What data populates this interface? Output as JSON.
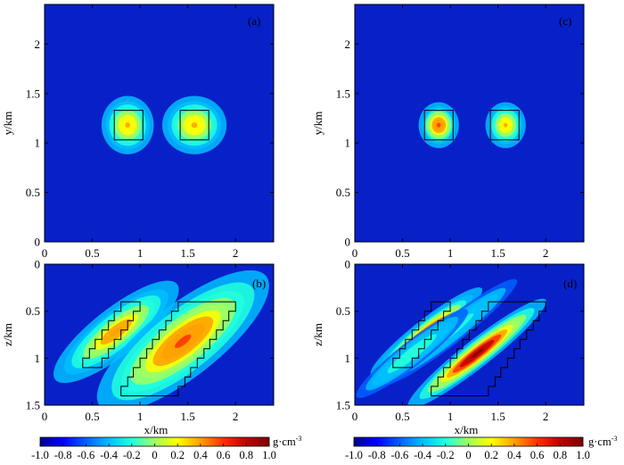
{
  "figure": {
    "colormap": [
      "#00008f",
      "#0000ff",
      "#0060ff",
      "#00bfff",
      "#22ffdd",
      "#a0ff60",
      "#ffff00",
      "#ff9f00",
      "#ff3000",
      "#bf0000",
      "#7f0000"
    ],
    "background_color": "#0820c8",
    "outline_color": "#000000"
  },
  "chart_data": [
    {
      "id": "a",
      "type": "heatmap",
      "panel_label": "(a)",
      "xlabel": "",
      "ylabel": "y/km",
      "xlim": [
        0,
        2.4
      ],
      "ylim": [
        0,
        2.4
      ],
      "xticks": [
        "0",
        "0.5",
        "1",
        "1.5",
        "2"
      ],
      "yticks": [
        "0",
        "0.5",
        "1",
        "1.5",
        "2"
      ],
      "outlines": [
        {
          "name": "block-1",
          "points": [
            [
              0.73,
              1.33
            ],
            [
              1.03,
              1.33
            ],
            [
              1.03,
              1.03
            ],
            [
              0.73,
              1.03
            ]
          ]
        },
        {
          "name": "block-2",
          "points": [
            [
              1.42,
              1.33
            ],
            [
              1.72,
              1.33
            ],
            [
              1.72,
              1.03
            ],
            [
              1.42,
              1.03
            ]
          ]
        }
      ],
      "anomalies": [
        {
          "cx": 0.87,
          "cy": 1.18,
          "sx": 0.13,
          "sy": 0.14,
          "value": 0.34
        },
        {
          "cx": 1.57,
          "cy": 1.18,
          "sx": 0.16,
          "sy": 0.14,
          "value": 0.38
        }
      ]
    },
    {
      "id": "b",
      "type": "heatmap",
      "panel_label": "(b)",
      "xlabel": "x/km",
      "ylabel": "z/km",
      "xlim": [
        0,
        2.4
      ],
      "ylim": [
        0,
        1.5
      ],
      "y_reversed": true,
      "xticks": [
        "0",
        "0.5",
        "1",
        "1.5",
        "2"
      ],
      "yticks": [
        "0",
        "0.5",
        "1",
        "1.5"
      ],
      "outlines": [
        {
          "name": "dipping-body-1",
          "points": [
            [
              0.4,
              1.1
            ],
            [
              0.4,
              1.0
            ],
            [
              0.47,
              1.0
            ],
            [
              0.47,
              0.9
            ],
            [
              0.53,
              0.9
            ],
            [
              0.53,
              0.8
            ],
            [
              0.6,
              0.8
            ],
            [
              0.6,
              0.7
            ],
            [
              0.67,
              0.7
            ],
            [
              0.67,
              0.6
            ],
            [
              0.73,
              0.6
            ],
            [
              0.73,
              0.5
            ],
            [
              0.8,
              0.5
            ],
            [
              0.8,
              0.4
            ],
            [
              1.0,
              0.4
            ],
            [
              1.0,
              0.5
            ],
            [
              0.93,
              0.5
            ],
            [
              0.93,
              0.6
            ],
            [
              0.87,
              0.6
            ],
            [
              0.87,
              0.7
            ],
            [
              0.8,
              0.7
            ],
            [
              0.8,
              0.8
            ],
            [
              0.73,
              0.8
            ],
            [
              0.73,
              0.9
            ],
            [
              0.67,
              0.9
            ],
            [
              0.67,
              1.0
            ],
            [
              0.6,
              1.0
            ],
            [
              0.6,
              1.1
            ]
          ]
        },
        {
          "name": "dipping-body-2",
          "points": [
            [
              0.8,
              1.4
            ],
            [
              0.8,
              1.3
            ],
            [
              0.87,
              1.3
            ],
            [
              0.87,
              1.2
            ],
            [
              0.93,
              1.2
            ],
            [
              0.93,
              1.1
            ],
            [
              1.0,
              1.1
            ],
            [
              1.0,
              1.0
            ],
            [
              1.07,
              1.0
            ],
            [
              1.07,
              0.9
            ],
            [
              1.13,
              0.9
            ],
            [
              1.13,
              0.8
            ],
            [
              1.2,
              0.8
            ],
            [
              1.2,
              0.7
            ],
            [
              1.27,
              0.7
            ],
            [
              1.27,
              0.6
            ],
            [
              1.33,
              0.6
            ],
            [
              1.33,
              0.5
            ],
            [
              1.4,
              0.5
            ],
            [
              1.4,
              0.4
            ],
            [
              2.0,
              0.4
            ],
            [
              2.0,
              0.5
            ],
            [
              1.93,
              0.5
            ],
            [
              1.93,
              0.6
            ],
            [
              1.87,
              0.6
            ],
            [
              1.87,
              0.7
            ],
            [
              1.8,
              0.7
            ],
            [
              1.8,
              0.8
            ],
            [
              1.73,
              0.8
            ],
            [
              1.73,
              0.9
            ],
            [
              1.67,
              0.9
            ],
            [
              1.67,
              1.0
            ],
            [
              1.6,
              1.0
            ],
            [
              1.6,
              1.1
            ],
            [
              1.53,
              1.1
            ],
            [
              1.53,
              1.2
            ],
            [
              1.47,
              1.2
            ],
            [
              1.47,
              1.3
            ],
            [
              1.4,
              1.3
            ],
            [
              1.4,
              1.4
            ]
          ]
        }
      ],
      "anomalies": [
        {
          "cx": 0.75,
          "cy": 0.72,
          "su": 0.55,
          "sv": 0.17,
          "angle": 38,
          "value": 0.42
        },
        {
          "cx": 1.45,
          "cy": 0.82,
          "su": 0.75,
          "sv": 0.26,
          "angle": 38,
          "value": 0.6
        }
      ]
    },
    {
      "id": "c",
      "type": "heatmap",
      "panel_label": "(c)",
      "xlabel": "",
      "ylabel": "y/km",
      "xlim": [
        0,
        2.4
      ],
      "ylim": [
        0,
        2.4
      ],
      "xticks": [
        "0",
        "0.5",
        "1",
        "1.5",
        "2"
      ],
      "yticks": [
        "0",
        "0.5",
        "1",
        "1.5",
        "2"
      ],
      "outlines": [
        {
          "name": "block-1",
          "points": [
            [
              0.73,
              1.33
            ],
            [
              1.03,
              1.33
            ],
            [
              1.03,
              1.03
            ],
            [
              0.73,
              1.03
            ]
          ]
        },
        {
          "name": "block-2",
          "points": [
            [
              1.42,
              1.33
            ],
            [
              1.72,
              1.33
            ],
            [
              1.72,
              1.03
            ],
            [
              1.42,
              1.03
            ]
          ]
        }
      ],
      "anomalies": [
        {
          "cx": 0.88,
          "cy": 1.18,
          "sx": 0.1,
          "sy": 0.11,
          "value": 0.55
        },
        {
          "cx": 1.58,
          "cy": 1.18,
          "sx": 0.1,
          "sy": 0.11,
          "value": 0.4
        }
      ]
    },
    {
      "id": "d",
      "type": "heatmap",
      "panel_label": "(d)",
      "xlabel": "x/km",
      "ylabel": "z/km",
      "xlim": [
        0,
        2.4
      ],
      "ylim": [
        0,
        1.5
      ],
      "y_reversed": true,
      "xticks": [
        "0",
        "0.5",
        "1",
        "1.5",
        "2"
      ],
      "yticks": [
        "0",
        "0.5",
        "1",
        "1.5"
      ],
      "outlines": [
        {
          "name": "dipping-body-1",
          "points": [
            [
              0.4,
              1.1
            ],
            [
              0.4,
              1.0
            ],
            [
              0.47,
              1.0
            ],
            [
              0.47,
              0.9
            ],
            [
              0.53,
              0.9
            ],
            [
              0.53,
              0.8
            ],
            [
              0.6,
              0.8
            ],
            [
              0.6,
              0.7
            ],
            [
              0.67,
              0.7
            ],
            [
              0.67,
              0.6
            ],
            [
              0.73,
              0.6
            ],
            [
              0.73,
              0.5
            ],
            [
              0.8,
              0.5
            ],
            [
              0.8,
              0.4
            ],
            [
              1.0,
              0.4
            ],
            [
              1.0,
              0.5
            ],
            [
              0.93,
              0.5
            ],
            [
              0.93,
              0.6
            ],
            [
              0.87,
              0.6
            ],
            [
              0.87,
              0.7
            ],
            [
              0.8,
              0.7
            ],
            [
              0.8,
              0.8
            ],
            [
              0.73,
              0.8
            ],
            [
              0.73,
              0.9
            ],
            [
              0.67,
              0.9
            ],
            [
              0.67,
              1.0
            ],
            [
              0.6,
              1.0
            ],
            [
              0.6,
              1.1
            ]
          ]
        },
        {
          "name": "dipping-body-2",
          "points": [
            [
              0.8,
              1.4
            ],
            [
              0.8,
              1.3
            ],
            [
              0.87,
              1.3
            ],
            [
              0.87,
              1.2
            ],
            [
              0.93,
              1.2
            ],
            [
              0.93,
              1.1
            ],
            [
              1.0,
              1.1
            ],
            [
              1.0,
              1.0
            ],
            [
              1.07,
              1.0
            ],
            [
              1.07,
              0.9
            ],
            [
              1.13,
              0.9
            ],
            [
              1.13,
              0.8
            ],
            [
              1.2,
              0.8
            ],
            [
              1.2,
              0.7
            ],
            [
              1.27,
              0.7
            ],
            [
              1.27,
              0.6
            ],
            [
              1.33,
              0.6
            ],
            [
              1.33,
              0.5
            ],
            [
              1.4,
              0.5
            ],
            [
              1.4,
              0.4
            ],
            [
              2.0,
              0.4
            ],
            [
              2.0,
              0.5
            ],
            [
              1.93,
              0.5
            ],
            [
              1.93,
              0.6
            ],
            [
              1.87,
              0.6
            ],
            [
              1.87,
              0.7
            ],
            [
              1.8,
              0.7
            ],
            [
              1.8,
              0.8
            ],
            [
              1.73,
              0.8
            ],
            [
              1.73,
              0.9
            ],
            [
              1.67,
              0.9
            ],
            [
              1.67,
              1.0
            ],
            [
              1.6,
              1.0
            ],
            [
              1.6,
              1.1
            ],
            [
              1.53,
              1.1
            ],
            [
              1.53,
              1.2
            ],
            [
              1.47,
              1.2
            ],
            [
              1.47,
              1.3
            ],
            [
              1.4,
              1.3
            ],
            [
              1.4,
              1.4
            ]
          ]
        }
      ],
      "anomalies": [
        {
          "cx": 0.75,
          "cy": 0.72,
          "su": 0.5,
          "sv": 0.09,
          "angle": 38,
          "value": 0.55
        },
        {
          "cx": 1.28,
          "cy": 0.95,
          "su": 0.62,
          "sv": 0.1,
          "angle": 38,
          "value": 0.9
        },
        {
          "cx": 1.0,
          "cy": 0.72,
          "su": 0.6,
          "sv": 0.09,
          "angle": 38,
          "value": -0.2
        },
        {
          "cx": 0.6,
          "cy": 0.95,
          "su": 0.5,
          "sv": 0.09,
          "angle": 38,
          "value": -0.15
        }
      ]
    }
  ],
  "colorbars": [
    {
      "id": "left",
      "range": [
        -1.0,
        1.0
      ],
      "tick_labels": [
        "-1.0",
        "-0.8",
        "-0.6",
        "-0.4",
        "-0.2",
        "0",
        "0.2",
        "0.4",
        "0.6",
        "0.8",
        "1.0"
      ],
      "unit": "g·cm",
      "unit_exponent": "-3"
    },
    {
      "id": "right",
      "range": [
        -1.0,
        1.0
      ],
      "tick_labels": [
        "-1.0",
        "-0.8",
        "-0.6",
        "-0.4",
        "-0.2",
        "0",
        "0.2",
        "0.4",
        "0.6",
        "0.8",
        "1.0"
      ],
      "unit": "g·cm",
      "unit_exponent": "-3"
    }
  ]
}
